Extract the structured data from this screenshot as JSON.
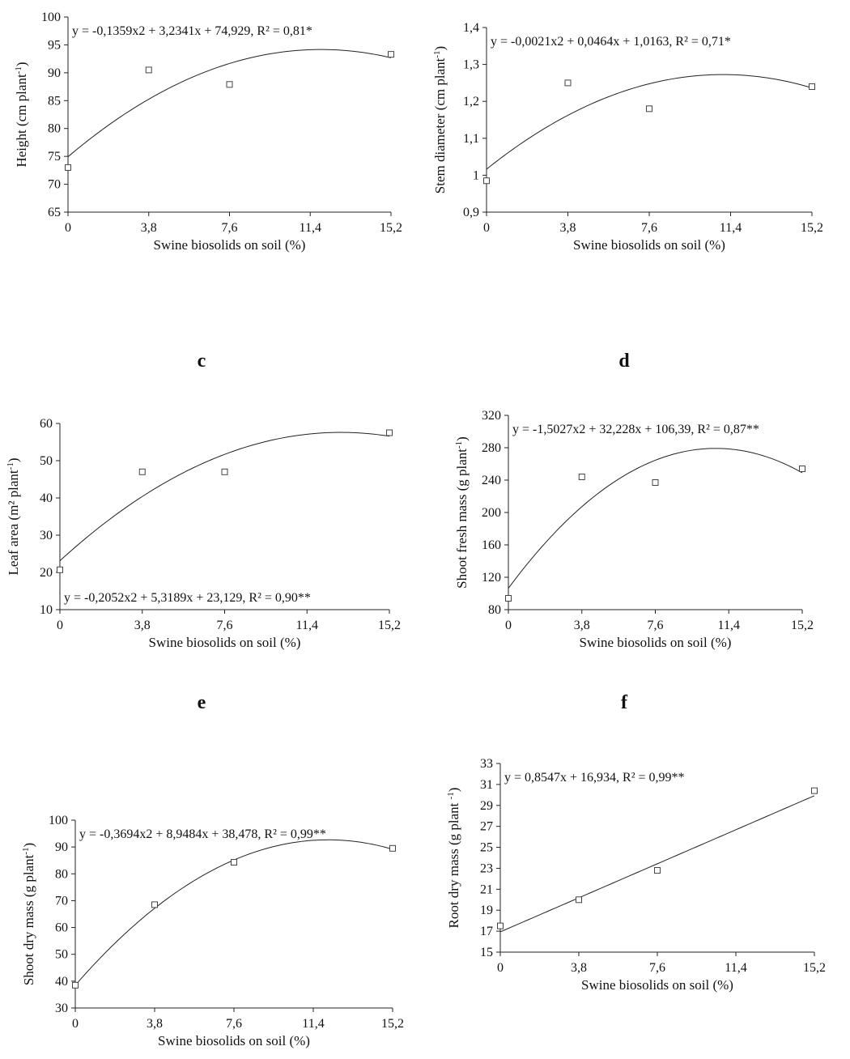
{
  "panel_letters": [
    "c",
    "d",
    "e",
    "f"
  ],
  "chart_data": [
    {
      "type": "scatter",
      "ylabel": "Height (cm plant⁻¹)",
      "xlabel": "Swine biosolids on soil (%)",
      "xlim": [
        0,
        15.2
      ],
      "ylim": [
        65,
        100
      ],
      "xticks": [
        0,
        3.8,
        7.6,
        11.4,
        15.2
      ],
      "xtick_labels": [
        "0",
        "3,8",
        "7,6",
        "11,4",
        "15,2"
      ],
      "yticks": [
        65,
        70,
        75,
        80,
        85,
        90,
        95,
        100
      ],
      "ytick_labels": [
        "65",
        "70",
        "75",
        "80",
        "85",
        "90",
        "95",
        "100"
      ],
      "points": [
        [
          0,
          73.0
        ],
        [
          3.8,
          90.5
        ],
        [
          7.6,
          87.9
        ],
        [
          15.2,
          93.3
        ]
      ],
      "fit": {
        "a": -0.1359,
        "b": 3.2341,
        "c": 74.929
      },
      "equation": "y = -0,1359x2 + 3,2341x + 74,929, R² = 0,81*",
      "equation_position": "top-left",
      "grid": false
    },
    {
      "type": "scatter",
      "ylabel": "Stem diameter (cm plant⁻¹)",
      "xlabel": "Swine biosolids on soil (%)",
      "xlim": [
        0,
        15.2
      ],
      "ylim": [
        0.9,
        1.4
      ],
      "xticks": [
        0,
        3.8,
        7.6,
        11.4,
        15.2
      ],
      "xtick_labels": [
        "0",
        "3,8",
        "7,6",
        "11,4",
        "15,2"
      ],
      "yticks": [
        0.9,
        1.0,
        1.1,
        1.2,
        1.3,
        1.4
      ],
      "ytick_labels": [
        "0,9",
        "1",
        "1,1",
        "1,2",
        "1,3",
        "1,4"
      ],
      "points": [
        [
          0,
          0.985
        ],
        [
          3.8,
          1.25
        ],
        [
          7.6,
          1.18
        ],
        [
          15.2,
          1.24
        ]
      ],
      "fit": {
        "a": -0.0021,
        "b": 0.0464,
        "c": 1.0163
      },
      "equation": "y = -0,0021x2 + 0,0464x + 1,0163, R² = 0,71*",
      "equation_position": "top-left",
      "grid": false
    },
    {
      "type": "scatter",
      "ylabel": "Leaf area (m² plant⁻¹)",
      "xlabel": "Swine biosolids on soil (%)",
      "xlim": [
        0,
        15.2
      ],
      "ylim": [
        10,
        60
      ],
      "xticks": [
        0,
        3.8,
        7.6,
        11.4,
        15.2
      ],
      "xtick_labels": [
        "0",
        "3,8",
        "7,6",
        "11,4",
        "15,2"
      ],
      "yticks": [
        10,
        20,
        30,
        40,
        50,
        60
      ],
      "ytick_labels": [
        "10",
        "20",
        "30",
        "40",
        "50",
        "60"
      ],
      "points": [
        [
          0,
          20.7
        ],
        [
          3.8,
          47.0
        ],
        [
          7.6,
          47.0
        ],
        [
          15.2,
          57.5
        ]
      ],
      "fit": {
        "a": -0.2052,
        "b": 5.3189,
        "c": 23.129
      },
      "equation": "y = -0,2052x2 + 5,3189x + 23,129, R² = 0,90**",
      "equation_position": "bottom-left",
      "grid": false
    },
    {
      "type": "scatter",
      "ylabel": "Shoot fresh mass  (g plant⁻¹)",
      "xlabel": "Swine biosolids on soil (%)",
      "xlim": [
        0,
        15.2
      ],
      "ylim": [
        80,
        320
      ],
      "xticks": [
        0,
        3.8,
        7.6,
        11.4,
        15.2
      ],
      "xtick_labels": [
        "0",
        "3,8",
        "7,6",
        "11,4",
        "15,2"
      ],
      "yticks": [
        80,
        120,
        160,
        200,
        240,
        280,
        320
      ],
      "ytick_labels": [
        "80",
        "120",
        "160",
        "200",
        "240",
        "280",
        "320"
      ],
      "points": [
        [
          0,
          94
        ],
        [
          3.8,
          244
        ],
        [
          7.6,
          237
        ],
        [
          15.2,
          254
        ]
      ],
      "fit": {
        "a": -1.5027,
        "b": 32.228,
        "c": 106.39
      },
      "equation": "y = -1,5027x2 + 32,228x + 106,39, R² = 0,87**",
      "equation_position": "top-left",
      "grid": false
    },
    {
      "type": "scatter",
      "ylabel": "Shoot dry mass (g plant⁻¹)",
      "xlabel": "Swine biosolids on soil (%)",
      "xlim": [
        0,
        15.2
      ],
      "ylim": [
        30,
        100
      ],
      "xticks": [
        0,
        3.8,
        7.6,
        11.4,
        15.2
      ],
      "xtick_labels": [
        "0",
        "3,8",
        "7,6",
        "11,4",
        "15,2"
      ],
      "yticks": [
        30,
        40,
        50,
        60,
        70,
        80,
        90,
        100
      ],
      "ytick_labels": [
        "30",
        "40",
        "50",
        "60",
        "70",
        "80",
        "90",
        "100"
      ],
      "points": [
        [
          0,
          38.5
        ],
        [
          3.8,
          68.5
        ],
        [
          7.6,
          84.3
        ],
        [
          15.2,
          89.5
        ]
      ],
      "fit": {
        "a": -0.3694,
        "b": 8.9484,
        "c": 38.478
      },
      "equation": "y = -0,3694x2 + 8,9484x + 38,478, R² = 0,99**",
      "equation_position": "top-left",
      "grid": false
    },
    {
      "type": "scatter",
      "ylabel": "Root dry mass (g plant ⁻¹)",
      "xlabel": "Swine biosolids on soil (%)",
      "xlim": [
        0,
        15.2
      ],
      "ylim": [
        15,
        33
      ],
      "xticks": [
        0,
        3.8,
        7.6,
        11.4,
        15.2
      ],
      "xtick_labels": [
        "0",
        "3,8",
        "7,6",
        "11,4",
        "15,2"
      ],
      "yticks": [
        15,
        17,
        19,
        21,
        23,
        25,
        27,
        29,
        31,
        33
      ],
      "ytick_labels": [
        "15",
        "17",
        "19",
        "21",
        "23",
        "25",
        "27",
        "29",
        "31",
        "33"
      ],
      "points": [
        [
          0,
          17.5
        ],
        [
          3.8,
          20.0
        ],
        [
          7.6,
          22.8
        ],
        [
          15.2,
          30.4
        ]
      ],
      "fit": {
        "a": 0,
        "b": 0.8547,
        "c": 16.934
      },
      "equation": "y = 0,8547x + 16,934, R² = 0,99**",
      "equation_position": "top-left",
      "grid": false
    }
  ]
}
